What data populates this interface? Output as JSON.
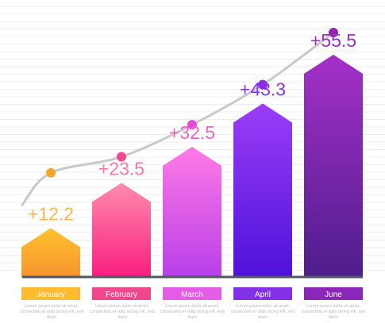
{
  "chart_data": {
    "type": "bar",
    "categories": [
      "January",
      "February",
      "March",
      "April",
      "June"
    ],
    "values": [
      12.2,
      23.5,
      32.5,
      43.3,
      55.5
    ],
    "value_labels": [
      "+12.2",
      "+23.5",
      "+32.5",
      "+43.3",
      "+55.5"
    ],
    "trend_line": {
      "values": [
        18,
        26,
        30,
        38,
        48,
        61
      ],
      "color": "#c9c9c9",
      "marker_colors": [
        "#f6a530",
        "#f04a8e",
        "#e24ad8",
        "#8a2be2",
        "#8a2bb0"
      ]
    },
    "colors": {
      "bar_tops": [
        "#ffc42e",
        "#ff8cae",
        "#ff7ae6",
        "#9b3df7",
        "#a430c8"
      ],
      "bar_bottoms": [
        "#f7932f",
        "#f91e80",
        "#b83fe8",
        "#4e12d9",
        "#4e1d8c"
      ],
      "category_tags": [
        "#fbbc2e",
        "#f0468c",
        "#e55ce6",
        "#8330e8",
        "#8a27b8"
      ],
      "value_labels": [
        "#f8b84a",
        "#ff76a6",
        "#f262c4",
        "#8a34ee",
        "#9b2fbe"
      ],
      "baseline": "#555566",
      "gridlines": "#eeeeee"
    },
    "captions": [
      "Lorem ipsum dolor sit amet, consectetu er adip iscing elit, sed diam",
      "Lorem ipsum dolor sit amet, consectetu er adip iscing elit, sed diam",
      "Lorem ipsum dolor sit amet, consectetu er adip iscing elit, sed diam",
      "Lorem ipsum dolor sit amet, consectetu er adip iscing elit, sed diam",
      "Lorem ipsum dolor sit amet, consectetu er adip iscing elit, sed diam"
    ],
    "ylim": [
      0,
      62
    ],
    "grid": true,
    "legend": "none",
    "title": "",
    "xlabel": "",
    "ylabel": ""
  }
}
